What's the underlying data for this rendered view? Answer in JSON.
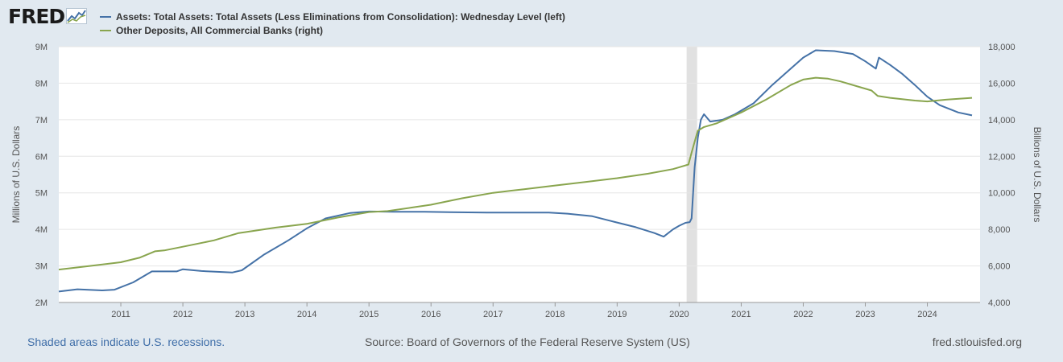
{
  "header": {
    "logo_text": "FRED",
    "logo_icon": "fred-chart-mark-icon"
  },
  "legend": [
    {
      "label": "Assets: Total Assets: Total Assets (Less Eliminations from Consolidation): Wednesday Level (left)",
      "color": "#4572a7"
    },
    {
      "label": "Other Deposits, All Commercial Banks (right)",
      "color": "#89a54e"
    }
  ],
  "footer": {
    "recessions_note": "Shaded areas indicate U.S. recessions.",
    "source": "Source: Board of Governors of the Federal Reserve System (US)",
    "url": "fred.stlouisfed.org"
  },
  "colors": {
    "background": "#e1e9f0",
    "plot_background": "#ffffff",
    "gridline": "#e6e6e6",
    "recession_shade": "#e1e1e1",
    "series_left": "#4572a7",
    "series_right": "#89a54e"
  },
  "chart_data": {
    "type": "line",
    "title": "",
    "x_ticks": [
      "2011",
      "2012",
      "2013",
      "2014",
      "2015",
      "2016",
      "2017",
      "2018",
      "2019",
      "2020",
      "2021",
      "2022",
      "2023",
      "2024"
    ],
    "xlim": [
      2010.0,
      2024.85
    ],
    "ylabel_left": "Millions of U.S. Dollars",
    "ylabel_right": "Billions of U.S. Dollars",
    "ylim_left": [
      2000000,
      9000000
    ],
    "ylim_right": [
      4000,
      18000
    ],
    "y_ticks_left": [
      "2M",
      "3M",
      "4M",
      "5M",
      "6M",
      "7M",
      "8M",
      "9M"
    ],
    "y_ticks_left_values": [
      2000000,
      3000000,
      4000000,
      5000000,
      6000000,
      7000000,
      8000000,
      9000000
    ],
    "y_ticks_right": [
      "4,000",
      "6,000",
      "8,000",
      "10,000",
      "12,000",
      "14,000",
      "16,000",
      "18,000"
    ],
    "y_ticks_right_values": [
      4000,
      6000,
      8000,
      10000,
      12000,
      14000,
      16000,
      18000
    ],
    "grid": true,
    "recessions": [
      [
        2020.12,
        2020.29
      ]
    ],
    "series": [
      {
        "name": "Assets: Total Assets: Total Assets (Less Eliminations from Consolidation): Wednesday Level (left)",
        "axis": "left",
        "x": [
          2010.0,
          2010.3,
          2010.7,
          2010.9,
          2011.2,
          2011.5,
          2011.9,
          2012.0,
          2012.3,
          2012.8,
          2012.95,
          2013.3,
          2013.7,
          2014.0,
          2014.3,
          2014.7,
          2015.0,
          2015.4,
          2015.9,
          2016.3,
          2016.9,
          2017.4,
          2017.9,
          2018.2,
          2018.6,
          2018.9,
          2019.3,
          2019.6,
          2019.75,
          2019.9,
          2020.0,
          2020.1,
          2020.17,
          2020.2,
          2020.25,
          2020.3,
          2020.35,
          2020.4,
          2020.5,
          2020.7,
          2020.9,
          2021.2,
          2021.5,
          2021.8,
          2022.0,
          2022.2,
          2022.5,
          2022.8,
          2023.0,
          2023.17,
          2023.22,
          2023.4,
          2023.6,
          2023.8,
          2024.0,
          2024.2,
          2024.5,
          2024.72
        ],
        "values": [
          2300000,
          2360000,
          2330000,
          2350000,
          2550000,
          2850000,
          2850000,
          2910000,
          2860000,
          2820000,
          2880000,
          3300000,
          3700000,
          4030000,
          4300000,
          4450000,
          4490000,
          4480000,
          4480000,
          4470000,
          4460000,
          4460000,
          4460000,
          4430000,
          4360000,
          4230000,
          4060000,
          3900000,
          3800000,
          4000000,
          4100000,
          4180000,
          4200000,
          4300000,
          5700000,
          6500000,
          7000000,
          7150000,
          6950000,
          7000000,
          7150000,
          7450000,
          7950000,
          8400000,
          8700000,
          8900000,
          8880000,
          8800000,
          8600000,
          8400000,
          8700000,
          8500000,
          8250000,
          7950000,
          7630000,
          7400000,
          7200000,
          7120000
        ]
      },
      {
        "name": "Other Deposits, All Commercial Banks (right)",
        "axis": "right",
        "x": [
          2010.0,
          2010.5,
          2011.0,
          2011.3,
          2011.55,
          2011.7,
          2012.0,
          2012.5,
          2012.9,
          2013.0,
          2013.5,
          2014.0,
          2014.5,
          2015.0,
          2015.3,
          2015.7,
          2016.0,
          2016.5,
          2017.0,
          2017.5,
          2018.0,
          2018.5,
          2019.0,
          2019.5,
          2019.9,
          2020.0,
          2020.15,
          2020.2,
          2020.25,
          2020.3,
          2020.4,
          2020.6,
          2021.0,
          2021.4,
          2021.8,
          2022.0,
          2022.2,
          2022.4,
          2022.6,
          2022.9,
          2023.1,
          2023.2,
          2023.4,
          2023.8,
          2024.0,
          2024.3,
          2024.72
        ],
        "values": [
          5800,
          6000,
          6200,
          6450,
          6800,
          6850,
          7050,
          7400,
          7800,
          7850,
          8100,
          8300,
          8650,
          8950,
          9000,
          9200,
          9350,
          9700,
          10000,
          10200,
          10400,
          10600,
          10800,
          11050,
          11300,
          11400,
          11550,
          12200,
          12800,
          13400,
          13600,
          13800,
          14400,
          15100,
          15900,
          16200,
          16300,
          16250,
          16100,
          15800,
          15600,
          15300,
          15200,
          15050,
          15000,
          15100,
          15200
        ]
      }
    ]
  }
}
